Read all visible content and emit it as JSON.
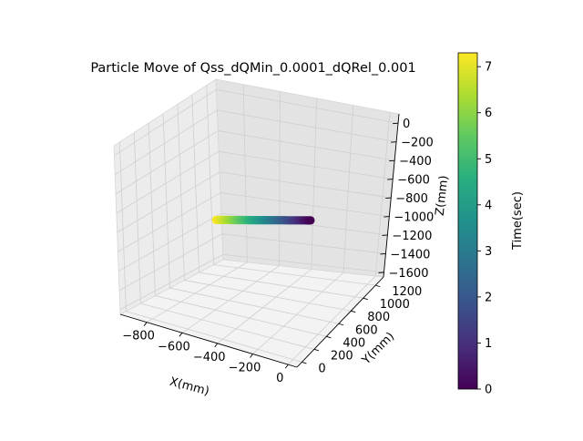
{
  "chart_data": {
    "type": "scatter",
    "projection": "3d",
    "title": "Particle Move of  Qss_dQMin_0.0001_dQRel_0.001",
    "xlabel": "X(mm)",
    "ylabel": "Y(mm)",
    "zlabel": "Z(mm)",
    "xlim": [
      -950,
      50
    ],
    "ylim": [
      -80,
      1330
    ],
    "zlim": [
      -1650,
      100
    ],
    "xticks": [
      "−800",
      "−600",
      "−400",
      "−200",
      "0"
    ],
    "yticks": [
      "0",
      "200",
      "400",
      "600",
      "800",
      "1000",
      "1200"
    ],
    "zticks": [
      "0",
      "−200",
      "−400",
      "−600",
      "−800",
      "−1000",
      "−1200",
      "−1400",
      "−1600"
    ],
    "colorbar": {
      "label": "Time(sec)",
      "colormap": "viridis",
      "range": [
        0,
        7.3
      ],
      "ticks": [
        "0",
        "1",
        "2",
        "3",
        "4",
        "5",
        "6",
        "7"
      ]
    },
    "grid": true,
    "trajectory": {
      "start": {
        "time": 0,
        "x": -180,
        "y": 670,
        "z": -720
      },
      "end": {
        "time": 7.3,
        "x": -700,
        "y": 670,
        "z": -1010
      }
    },
    "colors": {
      "pane": "#f2f2f2",
      "grid": "#cfcfcf"
    }
  }
}
